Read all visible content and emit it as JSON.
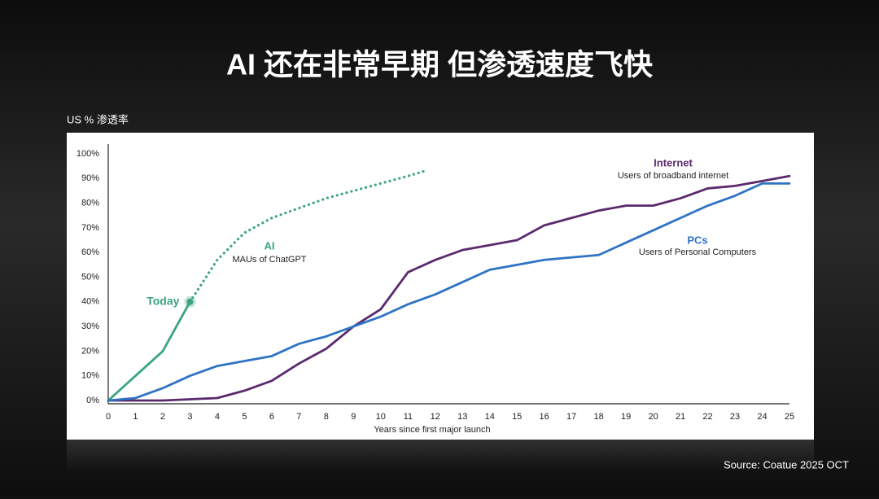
{
  "title": "AI 还在非常早期 但渗透速度飞快",
  "source": "Source: Coatue 2025 OCT",
  "chart_data": {
    "type": "line",
    "y_label": "US % 渗透率",
    "x_label": "Years since first major launch",
    "xlim": [
      0,
      25
    ],
    "ylim": [
      0,
      100
    ],
    "xticks": [
      0,
      1,
      2,
      3,
      4,
      5,
      6,
      7,
      8,
      9,
      10,
      11,
      12,
      13,
      14,
      15,
      16,
      17,
      18,
      19,
      20,
      21,
      22,
      23,
      24,
      25
    ],
    "yticks": [
      {
        "value": 0,
        "label": "0%"
      },
      {
        "value": 10,
        "label": "10%"
      },
      {
        "value": 20,
        "label": "20%"
      },
      {
        "value": 30,
        "label": "30%"
      },
      {
        "value": 40,
        "label": "40%"
      },
      {
        "value": 50,
        "label": "50%"
      },
      {
        "value": 60,
        "label": "60%"
      },
      {
        "value": 70,
        "label": "70%"
      },
      {
        "value": 80,
        "label": "80%"
      },
      {
        "value": 90,
        "label": "90%"
      },
      {
        "value": 100,
        "label": "100%"
      }
    ],
    "series": [
      {
        "name": "AI",
        "description": "MAUs of ChatGPT",
        "color": "#3aa57f",
        "dotted_after_x": 3,
        "x": [
          0,
          1,
          2,
          3,
          4,
          5,
          6,
          7,
          8,
          9,
          10,
          11,
          11.6
        ],
        "values": [
          0,
          10,
          20,
          40,
          57,
          68,
          74,
          78,
          82,
          85,
          88,
          91,
          93
        ]
      },
      {
        "name": "Internet",
        "description": "Users of broadband internet",
        "color": "#5b2a6e",
        "x": [
          0,
          1,
          2,
          3,
          4,
          5,
          6,
          7,
          8,
          9,
          10,
          11,
          12,
          13,
          14,
          15,
          16,
          17,
          18,
          19,
          20,
          21,
          22,
          23,
          24,
          25
        ],
        "values": [
          0,
          0,
          0,
          0.5,
          1,
          4,
          8,
          15,
          21,
          30,
          37,
          52,
          57,
          61,
          63,
          65,
          71,
          74,
          77,
          79,
          79,
          82,
          86,
          87,
          89,
          91
        ]
      },
      {
        "name": "PCs",
        "description": "Users of Personal Computers",
        "color": "#2f73c4",
        "x": [
          0,
          1,
          2,
          3,
          4,
          5,
          6,
          7,
          8,
          9,
          10,
          11,
          12,
          13,
          14,
          15,
          16,
          17,
          18,
          19,
          20,
          21,
          22,
          23,
          24,
          25
        ],
        "values": [
          0,
          1,
          5,
          10,
          14,
          16,
          18,
          23,
          26,
          30,
          34,
          39,
          43,
          48,
          53,
          55,
          57,
          58,
          59,
          64,
          69,
          74,
          79,
          83,
          88,
          88
        ]
      }
    ],
    "annotation": {
      "text": "Today",
      "x": 3,
      "y": 40,
      "color": "#3aa57f"
    }
  }
}
